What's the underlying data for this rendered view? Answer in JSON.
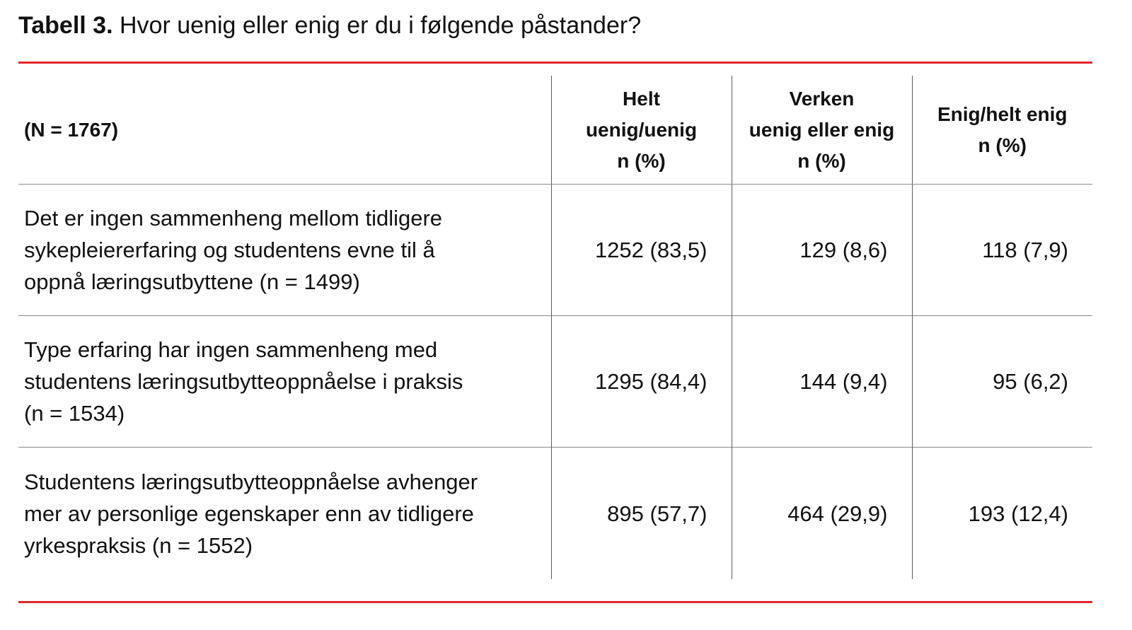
{
  "title": {
    "label": "Tabell 3.",
    "text": "Hvor uenig eller enig er du i følgende påstander?"
  },
  "colors": {
    "rule": "#e3262b",
    "grid": "#5a5a5a",
    "text": "#111111"
  },
  "table": {
    "stub_header": "(N = 1767)",
    "columns": [
      {
        "lines": [
          "Helt",
          "uenig/uenig",
          "n (%)"
        ]
      },
      {
        "lines": [
          "Verken",
          "uenig eller enig",
          "n (%)"
        ]
      },
      {
        "lines": [
          "Enig/helt enig",
          "n (%)"
        ]
      }
    ],
    "rows": [
      {
        "lines": [
          "Det er ingen sammenheng mellom tidligere",
          "sykepleiererfaring og studentens evne til å",
          "oppnå læringsutbyttene (n = 1499)"
        ],
        "values": [
          "1252 (83,5)",
          "129 (8,6)",
          "118 (7,9)"
        ]
      },
      {
        "lines": [
          "Type erfaring har ingen sammenheng med",
          "studentens læringsutbytteoppnåelse i praksis",
          "(n = 1534)"
        ],
        "values": [
          "1295 (84,4)",
          "144 (9,4)",
          "95 (6,2)"
        ]
      },
      {
        "lines": [
          "Studentens læringsutbytteoppnåelse avhenger",
          "mer av personlige egenskaper enn av tidligere",
          "yrkespraksis (n = 1552)"
        ],
        "values": [
          "895 (57,7)",
          "464 (29,9)",
          "193 (12,4)"
        ]
      }
    ]
  }
}
